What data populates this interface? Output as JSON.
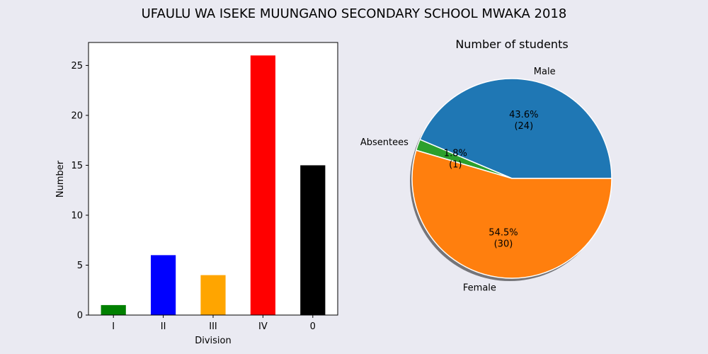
{
  "suptitle": "UFAULU WA ISEKE MUUNGANO SECONDARY SCHOOL MWAKA 2018",
  "chart_data": [
    {
      "type": "bar",
      "title": "",
      "xlabel": "Division",
      "ylabel": "Number",
      "categories": [
        "I",
        "II",
        "III",
        "IV",
        "0"
      ],
      "values": [
        1,
        6,
        4,
        26,
        15
      ],
      "colors": [
        "#008000",
        "#0000ff",
        "#ffa500",
        "#ff0000",
        "#000000"
      ],
      "ylim": [
        0,
        27.3
      ],
      "yticks": [
        0,
        5,
        10,
        15,
        20,
        25
      ],
      "grid": false,
      "background": "#ffffff"
    },
    {
      "type": "pie",
      "title": "Number of students",
      "labels": [
        "Male",
        "Absentees",
        "Female"
      ],
      "values": [
        24,
        1,
        30
      ],
      "pct_labels": [
        "43.6%\n(24)",
        "1.8%\n(1)",
        "54.5%\n(30)"
      ],
      "colors": [
        "#1f77b4",
        "#2ca02c",
        "#ff7f0e"
      ],
      "shadow": true
    }
  ]
}
